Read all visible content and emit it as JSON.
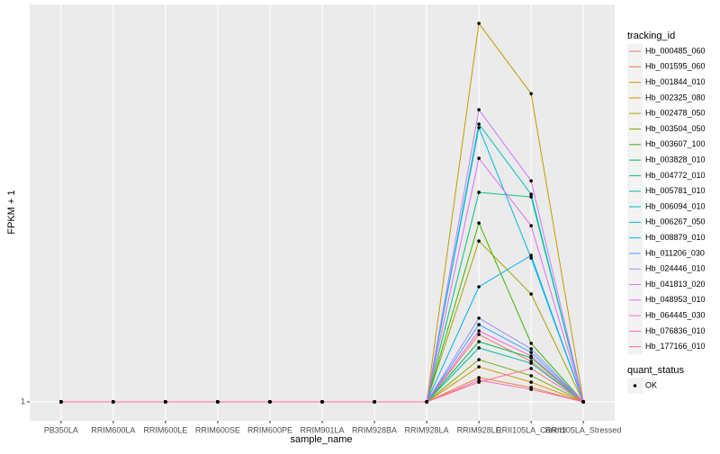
{
  "chart_data": {
    "type": "line",
    "x_label": "sample_name",
    "y_label": "FPKM + 1",
    "categories": [
      "PB350LA",
      "RRIM600LA",
      "RRIM600LE",
      "RRIM600SE",
      "RRIM600PE",
      "RRIM901LA",
      "RRIM928BA",
      "RRIM928LA",
      "RRIM928LE",
      "RRII105LA_Control",
      "RRII105LA_Stressed"
    ],
    "ylim": [
      0,
      22
    ],
    "yticks": [
      1
    ],
    "grid": true,
    "legend_title": "tracking_id",
    "legend_position": "right",
    "point_color": "#000000",
    "point_legend": {
      "title": "quant_status",
      "labels": [
        "OK"
      ]
    },
    "series": [
      {
        "name": "Hb_000485_060",
        "color": "#F8766D",
        "values": [
          1,
          1,
          1,
          1,
          1,
          1,
          1,
          1,
          4.56,
          3.14,
          1
        ]
      },
      {
        "name": "Hb_001595_060",
        "color": "#EA8331",
        "values": [
          1,
          1,
          1,
          1,
          1,
          1,
          1,
          1,
          2.28,
          1.76,
          1
        ]
      },
      {
        "name": "Hb_001844_010",
        "color": "#D89000",
        "values": [
          1,
          1,
          1,
          1,
          1,
          1,
          1,
          1,
          2.85,
          2.04,
          1
        ]
      },
      {
        "name": "Hb_002325_080",
        "color": "#C09B00",
        "values": [
          1,
          1,
          1,
          1,
          1,
          1,
          1,
          1,
          21.0,
          17.29,
          1
        ]
      },
      {
        "name": "Hb_002478_050",
        "color": "#A3A500",
        "values": [
          1,
          1,
          1,
          1,
          1,
          1,
          1,
          1,
          9.5,
          6.7,
          1
        ]
      },
      {
        "name": "Hb_003504_050",
        "color": "#7CAE00",
        "values": [
          1,
          1,
          1,
          1,
          1,
          1,
          1,
          1,
          3.23,
          2.38,
          1
        ]
      },
      {
        "name": "Hb_003607_100",
        "color": "#39B600",
        "values": [
          1,
          1,
          1,
          1,
          1,
          1,
          1,
          1,
          10.45,
          4.09,
          1
        ]
      },
      {
        "name": "Hb_003828_010",
        "color": "#00BB4E",
        "values": [
          1,
          1,
          1,
          1,
          1,
          1,
          1,
          1,
          4.18,
          3.33,
          1
        ]
      },
      {
        "name": "Hb_004772_010",
        "color": "#00BF7D",
        "values": [
          1,
          1,
          1,
          1,
          1,
          1,
          1,
          1,
          12.07,
          11.83,
          1
        ]
      },
      {
        "name": "Hb_005781_010",
        "color": "#00C1A3",
        "values": [
          1,
          1,
          1,
          1,
          1,
          1,
          1,
          1,
          3.85,
          3.04,
          1
        ]
      },
      {
        "name": "Hb_006094_010",
        "color": "#00BFC4",
        "values": [
          1,
          1,
          1,
          1,
          1,
          1,
          1,
          1,
          15.68,
          11.97,
          1
        ]
      },
      {
        "name": "Hb_006267_050",
        "color": "#00BAE0",
        "values": [
          1,
          1,
          1,
          1,
          1,
          1,
          1,
          1,
          15.49,
          8.6,
          1
        ]
      },
      {
        "name": "Hb_008879_010",
        "color": "#00B0F6",
        "values": [
          1,
          1,
          1,
          1,
          1,
          1,
          1,
          1,
          7.08,
          8.74,
          1
        ]
      },
      {
        "name": "Hb_011206_030",
        "color": "#35A2FF",
        "values": [
          1,
          1,
          1,
          1,
          1,
          1,
          1,
          1,
          5.08,
          3.61,
          1
        ]
      },
      {
        "name": "Hb_024446_010",
        "color": "#9590FF",
        "values": [
          1,
          1,
          1,
          1,
          1,
          1,
          1,
          1,
          5.42,
          3.8,
          1
        ]
      },
      {
        "name": "Hb_041813_020",
        "color": "#C77CFF",
        "values": [
          1,
          1,
          1,
          1,
          1,
          1,
          1,
          1,
          16.44,
          12.68,
          1
        ]
      },
      {
        "name": "Hb_048953_010",
        "color": "#E76BF3",
        "values": [
          1,
          1,
          1,
          1,
          1,
          1,
          1,
          1,
          13.87,
          10.31,
          1
        ]
      },
      {
        "name": "Hb_064445_030",
        "color": "#FA62DB",
        "values": [
          1,
          1,
          1,
          1,
          1,
          1,
          1,
          1,
          4.75,
          3.42,
          1
        ]
      },
      {
        "name": "Hb_076836_010",
        "color": "#FF62BC",
        "values": [
          1,
          1,
          1,
          1,
          1,
          1,
          1,
          1,
          2.14,
          1.66,
          1
        ]
      },
      {
        "name": "Hb_177166_010",
        "color": "#FF6C91",
        "values": [
          1,
          1,
          1,
          1,
          1,
          1,
          1,
          1,
          2.04,
          2.76,
          1
        ]
      }
    ]
  }
}
